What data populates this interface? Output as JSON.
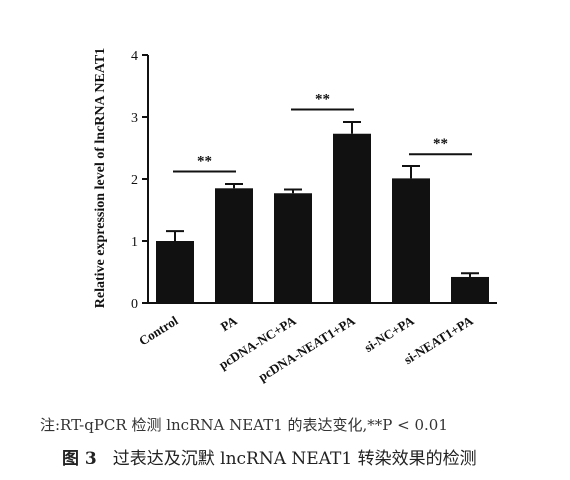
{
  "chart_data": {
    "type": "bar",
    "ylabel": "Relative expression level of lncRNA NEAT1",
    "ylim": [
      0,
      4
    ],
    "yticks": [
      "0",
      "1",
      "2",
      "3",
      "4"
    ],
    "categories": [
      "Control",
      "PA",
      "pcDNA-NC+PA",
      "pcDNA-NEAT1+PA",
      "si-NC+PA",
      "si-NEAT1+PA"
    ],
    "values": [
      1.0,
      1.85,
      1.77,
      2.73,
      2.01,
      0.42
    ],
    "errors": [
      0.16,
      0.07,
      0.06,
      0.19,
      0.2,
      0.06
    ],
    "bar_color": "#111111",
    "significance": [
      {
        "from": 0,
        "to": 1,
        "y": 2.12,
        "label": "**"
      },
      {
        "from": 2,
        "to": 3,
        "y": 3.12,
        "label": "**"
      },
      {
        "from": 4,
        "to": 5,
        "y": 2.4,
        "label": "**"
      }
    ]
  },
  "note": "注:RT-qPCR 检测 lncRNA NEAT1 的表达变化,**P < 0.01",
  "caption": {
    "figure_no": "图 3",
    "text": "过表达及沉默 lncRNA NEAT1 转染效果的检测"
  }
}
